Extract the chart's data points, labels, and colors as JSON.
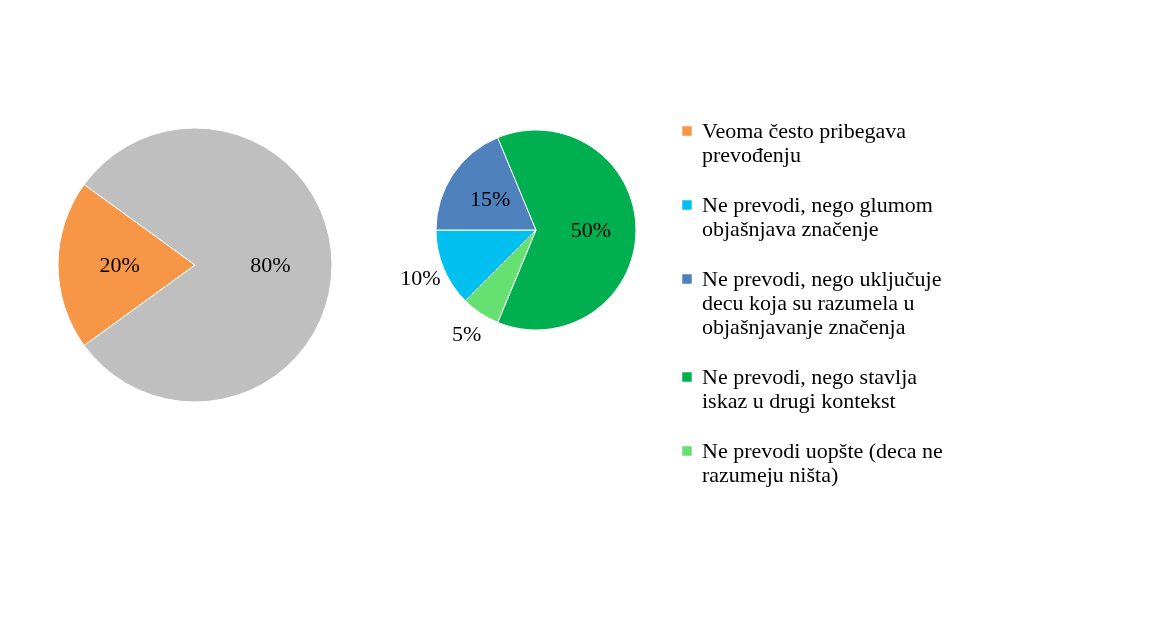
{
  "chart_data": [
    {
      "type": "pie",
      "categories": [
        "Veoma često pribegava prevođenju",
        null
      ],
      "values": [
        20,
        80
      ],
      "colors": [
        "#f79646",
        "#bfbfbf"
      ],
      "value_labels": [
        "20%",
        "80%"
      ],
      "legend": "right"
    },
    {
      "type": "pie",
      "categories": [
        "Ne prevodi, nego glumom objašnjava značenje",
        "Ne prevodi, nego uključuje decu koja su razumela u objašnjavanje značenja",
        "Ne prevodi, nego stavlja iskaz u drugi kontekst",
        "Ne prevodi uopšte (deca ne razumeju ništa)"
      ],
      "values": [
        10,
        15,
        50,
        5
      ],
      "colors": [
        "#00c0f0",
        "#4f81bd",
        "#00b050",
        "#66e070"
      ],
      "value_labels": [
        "10%",
        "15%",
        "50%",
        "5%"
      ],
      "legend": "right"
    }
  ]
}
